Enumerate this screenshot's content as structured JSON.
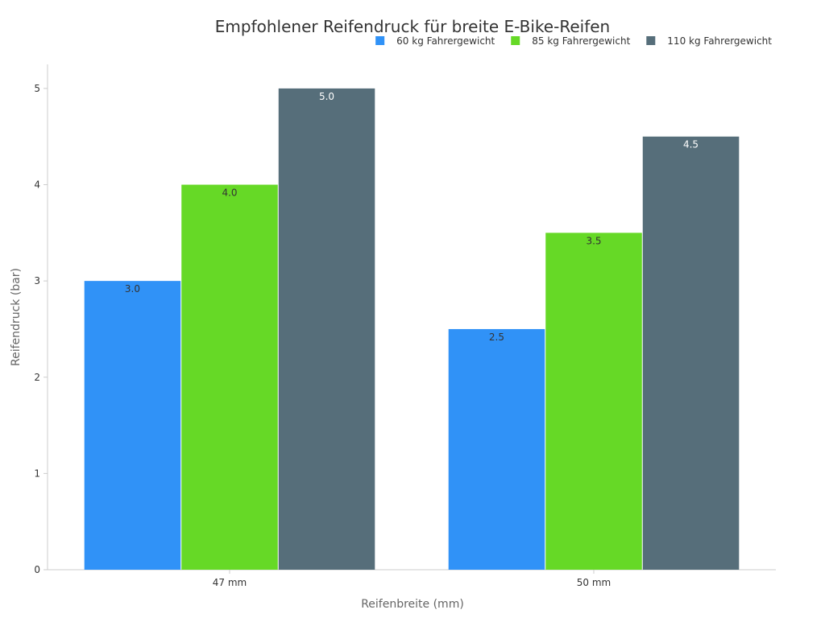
{
  "chart_data": {
    "type": "bar",
    "title": "Empfohlener Reifendruck für breite E-Bike-Reifen",
    "xlabel": "Reifenbreite (mm)",
    "ylabel": "Reifendruck (bar)",
    "categories": [
      "47 mm",
      "50 mm"
    ],
    "series": [
      {
        "name": "60 kg Fahrergewicht",
        "values": [
          3.0,
          2.5
        ],
        "color": "#3092f7",
        "label_color": "#333333"
      },
      {
        "name": "85 kg Fahrergewicht",
        "values": [
          4.0,
          3.5
        ],
        "color": "#66d926",
        "label_color": "#333333"
      },
      {
        "name": "110 kg Fahrergewicht",
        "values": [
          5.0,
          4.5
        ],
        "color": "#566e7a",
        "label_color": "#ffffff"
      }
    ],
    "ylim": [
      0,
      5.25
    ],
    "yticks": [
      0,
      1,
      2,
      3,
      4,
      5
    ],
    "grid": false,
    "legend_position": "top-right",
    "data_labels": true
  }
}
